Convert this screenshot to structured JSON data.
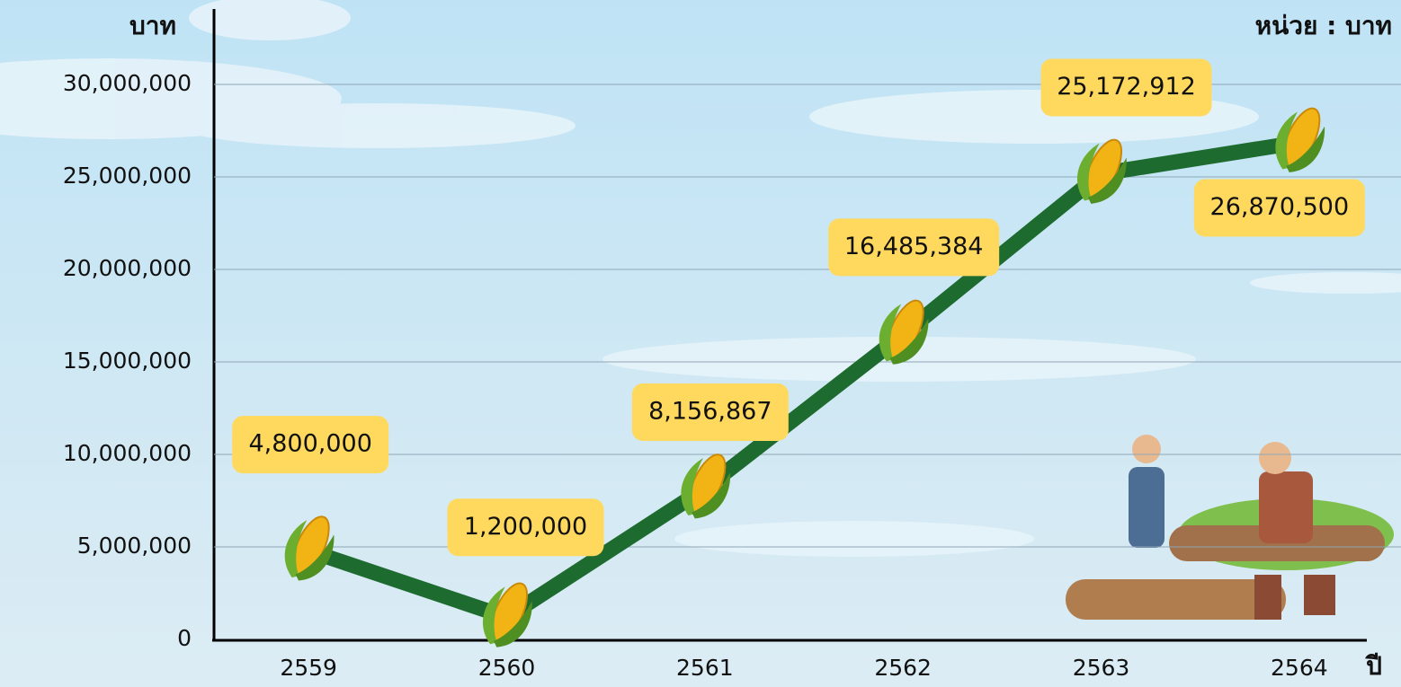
{
  "chart_data": {
    "type": "line",
    "y_axis_label": "บาท",
    "unit_note": "หน่วย : บาท",
    "x_axis_label": "ปี",
    "categories": [
      "2559",
      "2560",
      "2561",
      "2562",
      "2563",
      "2564"
    ],
    "values": [
      4800000,
      1200000,
      8156867,
      16485384,
      25172912,
      26870500
    ],
    "value_labels": [
      "4,800,000",
      "1,200,000",
      "8,156,867",
      "16,485,384",
      "25,172,912",
      "26,870,500"
    ],
    "color": "#1e6b2f",
    "ylim": [
      0,
      30000000
    ],
    "yticks": [
      0,
      {
        "value": 5000000,
        "label": "5,000,000"
      },
      {
        "value": 10000000,
        "label": "10,000,000"
      },
      {
        "value": 15000000,
        "label": "15,000,000"
      },
      {
        "value": 20000000,
        "label": "20,000,000"
      },
      {
        "value": 25000000,
        "label": "25,000,000"
      },
      {
        "value": 30000000,
        "label": "30,000,000"
      }
    ],
    "grid": true
  }
}
